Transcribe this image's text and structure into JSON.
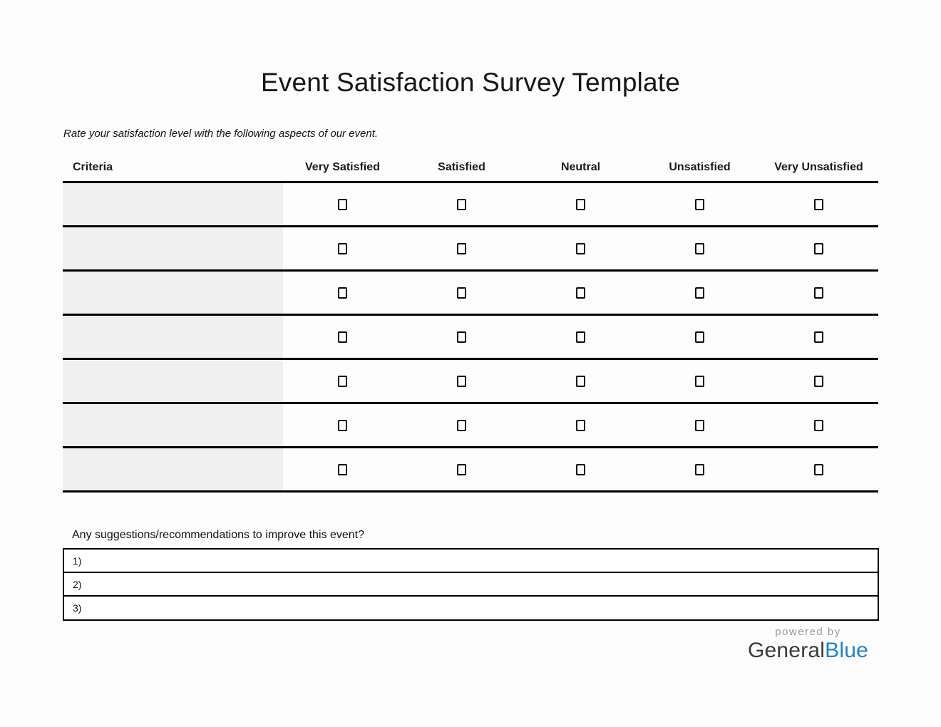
{
  "page": {
    "title": "Event Satisfaction Survey Template",
    "instruction": "Rate your satisfaction level with the following aspects of our event."
  },
  "survey_table": {
    "criteria_header": "Criteria",
    "rating_headers": [
      "Very Satisfied",
      "Satisfied",
      "Neutral",
      "Unsatisfied",
      "Very Unsatisfied"
    ],
    "row_count": 7,
    "rows": [
      {
        "criteria": "",
        "checked": [
          false,
          false,
          false,
          false,
          false
        ]
      },
      {
        "criteria": "",
        "checked": [
          false,
          false,
          false,
          false,
          false
        ]
      },
      {
        "criteria": "",
        "checked": [
          false,
          false,
          false,
          false,
          false
        ]
      },
      {
        "criteria": "",
        "checked": [
          false,
          false,
          false,
          false,
          false
        ]
      },
      {
        "criteria": "",
        "checked": [
          false,
          false,
          false,
          false,
          false
        ]
      },
      {
        "criteria": "",
        "checked": [
          false,
          false,
          false,
          false,
          false
        ]
      },
      {
        "criteria": "",
        "checked": [
          false,
          false,
          false,
          false,
          false
        ]
      }
    ]
  },
  "suggestions": {
    "question": "Any suggestions/recommendations to improve this event?",
    "lines": [
      {
        "label": "1)",
        "value": ""
      },
      {
        "label": "2)",
        "value": ""
      },
      {
        "label": "3)",
        "value": ""
      }
    ]
  },
  "footer": {
    "powered_by": "powered by",
    "brand_part_1": "General",
    "brand_part_2": "Blue"
  },
  "colors": {
    "brand_blue": "#1f82cd",
    "brand_dark": "#3a3a3a",
    "criteria_cell_bg": "#f0f0f0",
    "table_line": "#000000",
    "powered_by_gray": "#9a9a9a"
  }
}
